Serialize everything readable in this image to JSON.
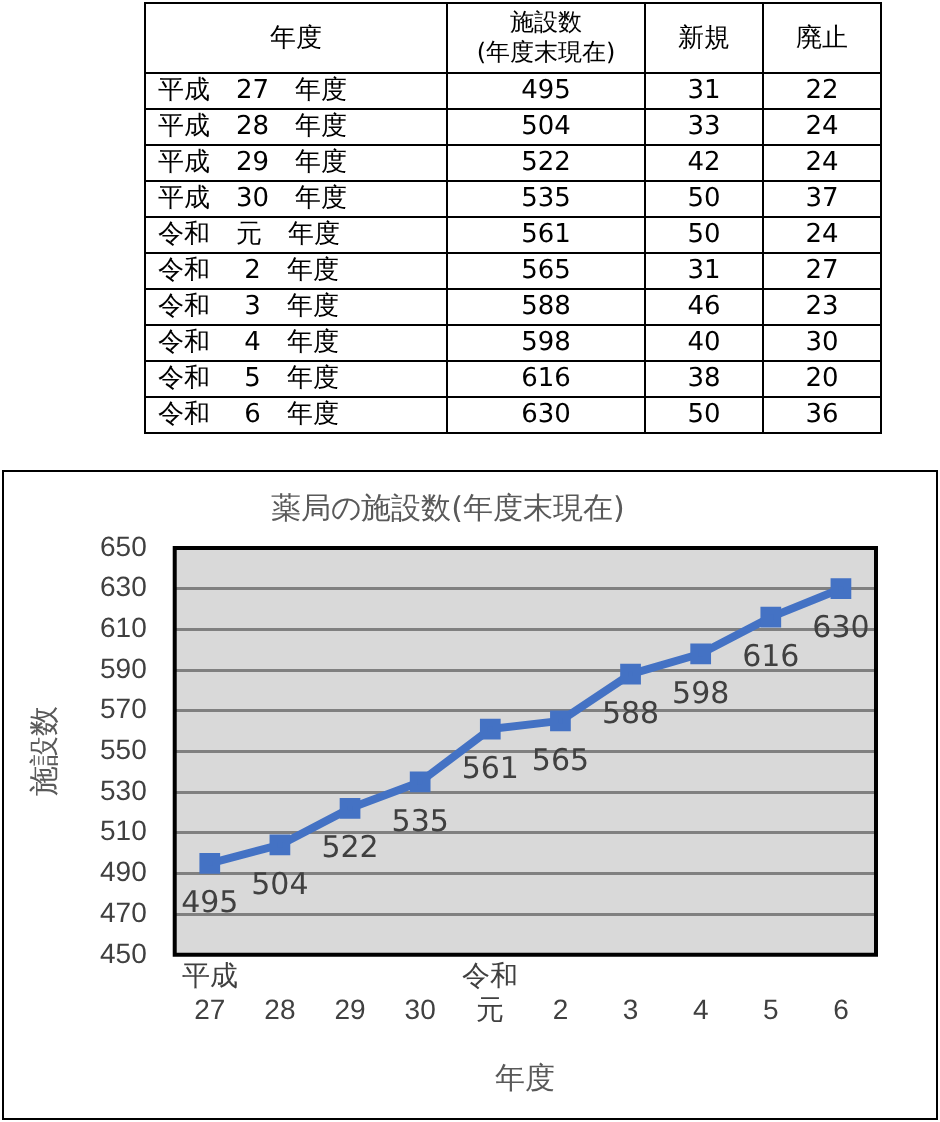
{
  "chart_data": [
    {
      "type": "other",
      "xlabel": "年度",
      "data_labels": true,
      "categories": [
        "平成　27　年度",
        "平成　28　年度",
        "平成　29　年度",
        "平成　30　年度",
        "令和　元　年度",
        "令和　 2　年度",
        "令和　 3　年度",
        "令和　 4　年度",
        "令和　 5　年度",
        "令和　 6　年度"
      ],
      "series": [
        {
          "name": "施設数\n(年度末現在)",
          "values": [
            495,
            504,
            522,
            535,
            561,
            565,
            588,
            598,
            616,
            630
          ]
        },
        {
          "name": "新規",
          "values": [
            31,
            33,
            42,
            50,
            50,
            31,
            46,
            40,
            38,
            50
          ]
        },
        {
          "name": "廃止",
          "values": [
            22,
            24,
            24,
            37,
            24,
            27,
            23,
            30,
            20,
            36
          ]
        }
      ]
    },
    {
      "type": "line",
      "title": "薬局の施設数(年度末現在)",
      "xlabel": "年度",
      "ylabel": "施設数",
      "categories": [
        "平成27",
        "28",
        "29",
        "30",
        "令和元",
        "2",
        "3",
        "4",
        "5",
        "6"
      ],
      "series": [
        {
          "color": "#4472c4",
          "values": [
            495,
            504,
            522,
            535,
            561,
            565,
            588,
            598,
            616,
            630
          ]
        }
      ],
      "ylim": [
        450,
        650
      ],
      "yticks": [
        450,
        470,
        490,
        510,
        530,
        550,
        570,
        590,
        610,
        630,
        650
      ],
      "grid": "y",
      "marker": "square",
      "data_labels": true,
      "legend": false
    }
  ]
}
